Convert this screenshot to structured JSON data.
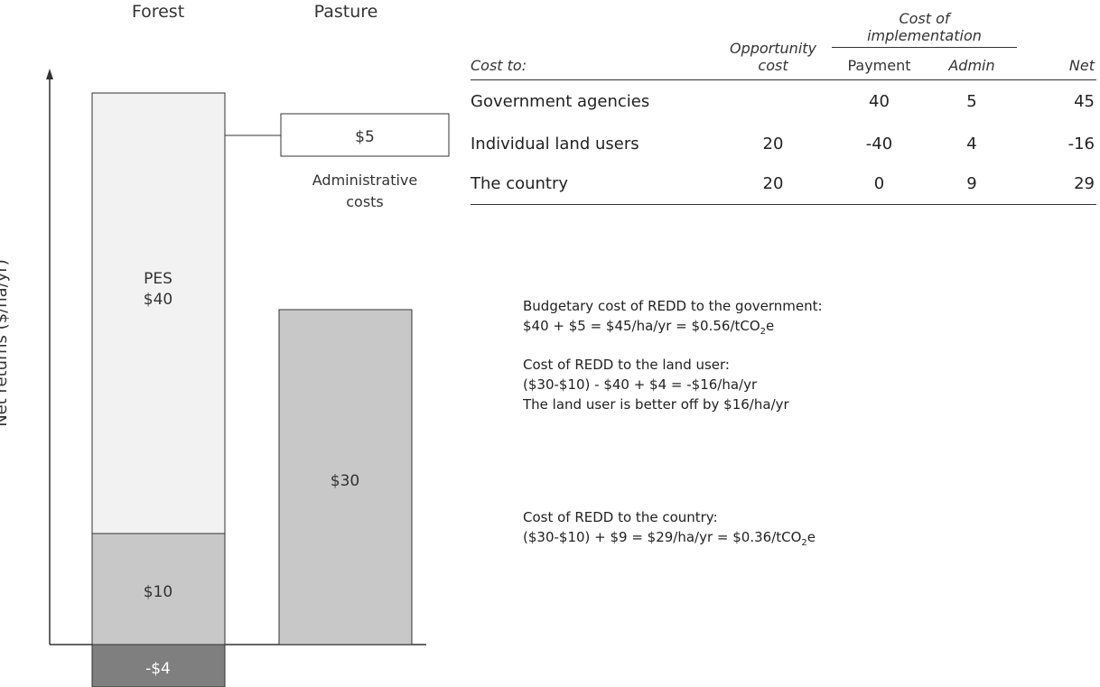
{
  "chart_data": {
    "type": "bar",
    "stacked": true,
    "categories": [
      "Forest",
      "Pasture"
    ],
    "ylabel": "Net returns ($/ha/yr)",
    "segments": {
      "Forest": [
        {
          "label": "-$4",
          "value": -4,
          "color": "#7f7f7f"
        },
        {
          "label": "$10",
          "value": 10,
          "color": "#c8c8c8"
        },
        {
          "label": "PES\n$40",
          "value": 40,
          "color": "#f2f2f2"
        }
      ],
      "Pasture": [
        {
          "label": "$30",
          "value": 30,
          "color": "#c8c8c8"
        }
      ]
    },
    "callout": {
      "label": "$5",
      "value": 5,
      "caption_line1": "Administrative",
      "caption_line2": "costs"
    }
  },
  "table": {
    "header": {
      "cost_to": "Cost to:",
      "opportunity_line1": "Opportunity",
      "opportunity_line2": "cost",
      "implementation_line1": "Cost of",
      "implementation_line2": "implementation",
      "payment": "Payment",
      "admin": "Admin",
      "net": "Net"
    },
    "rows": [
      {
        "name": "Government agencies",
        "opportunity": "",
        "payment": "40",
        "admin": "5",
        "net": "45"
      },
      {
        "name": "Individual land users",
        "opportunity": "20",
        "payment": "-40",
        "admin": "4",
        "net": "-16"
      },
      {
        "name": "The country",
        "opportunity": "20",
        "payment": "0",
        "admin": "9",
        "net": "29"
      }
    ]
  },
  "notes": {
    "n1_line1": "Budgetary cost of REDD to the government:",
    "n1_line2": "$40 + $5 = $45/ha/yr = $0.56/tCO",
    "n1_line2_sub": "2",
    "n1_line2_tail": "e",
    "n2_line1": "Cost of REDD to the land user:",
    "n2_line2": "($30-$10) - $40 + $4 = -$16/ha/yr",
    "n2_line3": "The land user is better off by $16/ha/yr",
    "n3_line1": "Cost of REDD to the country:",
    "n3_line2": "($30-$10) + $9 = $29/ha/yr = $0.36/tCO",
    "n3_line2_sub": "2",
    "n3_line2_tail": "e"
  }
}
